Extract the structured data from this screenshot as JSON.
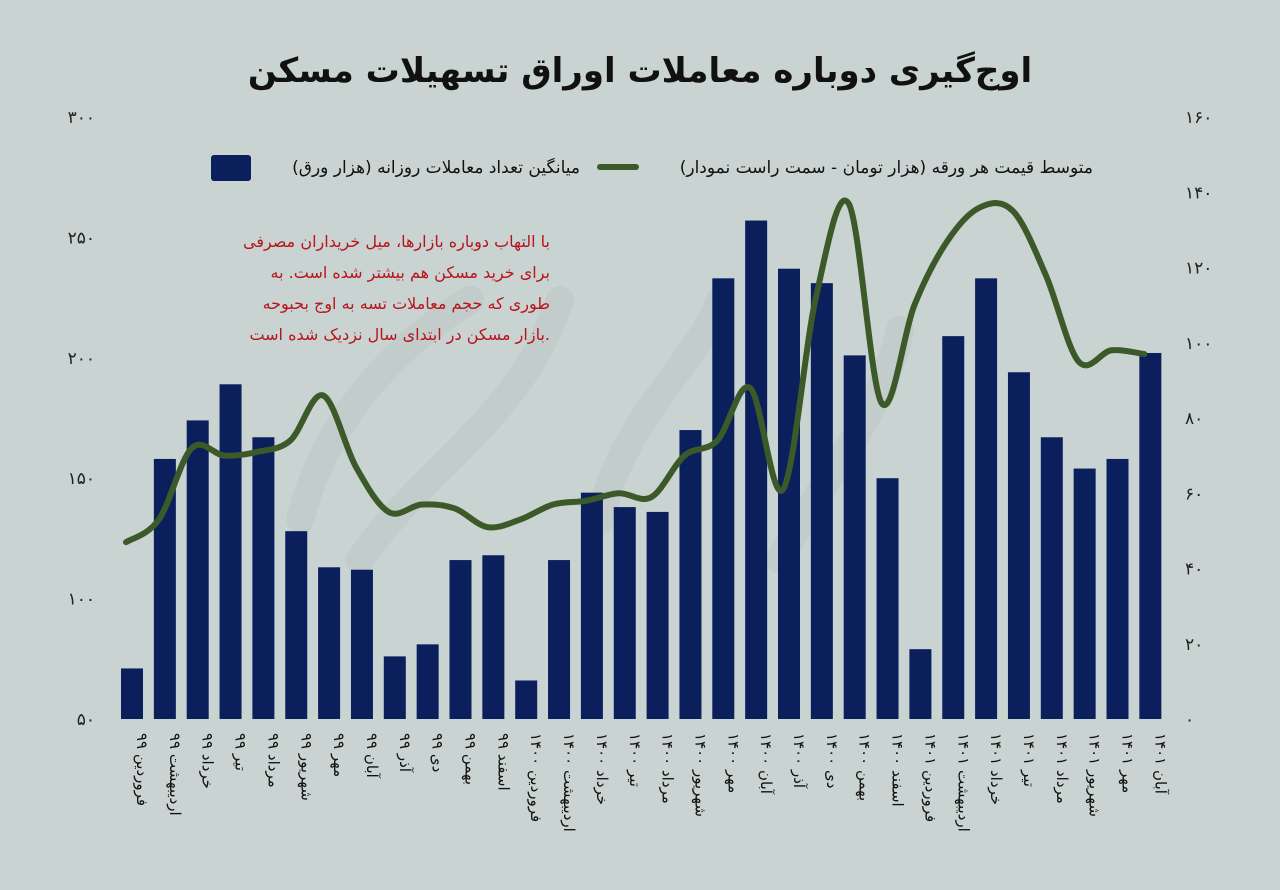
{
  "chart_data": {
    "type": "bar",
    "title": "اوج‌گیری دوباره معاملات اوراق تسهیلات مسکن",
    "categories": [
      "فروردین ۹۹",
      "اردیبهشت ۹۹",
      "خرداد ۹۹",
      "تیر ۹۹",
      "مرداد ۹۹",
      "شهریور ۹۹",
      "مهر ۹۹",
      "آبان ۹۹",
      "آذر ۹۹",
      "دی ۹۹",
      "بهمن ۹۹",
      "اسفند ۹۹",
      "فروردین ۱۴۰۰",
      "اردیبهشت ۱۴۰۰",
      "خرداد ۱۴۰۰",
      "تیر ۱۴۰۰",
      "مرداد ۱۴۰۰",
      "شهریور ۱۴۰۰",
      "مهر ۱۴۰۰",
      "آبان ۱۴۰۰",
      "آذر ۱۴۰۰",
      "دی ۱۴۰۰",
      "بهمن ۱۴۰۰",
      "اسفند ۱۴۰۰",
      "فروردین ۱۴۰۱",
      "اردیبهشت ۱۴۰۱",
      "خرداد ۱۴۰۱",
      "تیر ۱۴۰۱",
      "مرداد ۱۴۰۱",
      "شهریور ۱۴۰۱",
      "مهر ۱۴۰۱",
      "آبان ۱۴۰۱"
    ],
    "series": [
      {
        "name": "میانگین تعداد معاملات روزانه (هزار ورق)",
        "kind": "bar",
        "axis": "left",
        "color": "#0b1f5c",
        "values": [
          71,
          158,
          174,
          189,
          167,
          128,
          113,
          112,
          76,
          81,
          116,
          118,
          66,
          116,
          144,
          138,
          136,
          170,
          233,
          257,
          237,
          231,
          201,
          150,
          79,
          209,
          233,
          194,
          167,
          154,
          158,
          202
        ]
      },
      {
        "name": "متوسط قیمت هر ورقه (هزار تومان - سمت راست نمودار)",
        "kind": "line",
        "axis": "right",
        "color": "#3c5a29",
        "values": [
          47,
          53,
          72,
          70,
          71,
          74,
          86,
          67,
          55,
          57,
          56,
          51,
          53,
          57,
          58,
          60,
          59,
          70,
          74,
          88,
          61,
          112,
          137,
          84,
          110,
          127,
          136,
          135,
          118,
          95,
          98,
          97
        ]
      }
    ],
    "y_left": {
      "min": 50,
      "max": 300,
      "ticks": [
        "۵۰",
        "۱۰۰",
        "۱۵۰",
        "۲۰۰",
        "۲۵۰",
        "۳۰۰"
      ]
    },
    "y_right": {
      "min": 0,
      "max": 160,
      "ticks": [
        "۰",
        "۲۰",
        "۴۰",
        "۶۰",
        "۸۰",
        "۱۰۰",
        "۱۲۰",
        "۱۴۰",
        "۱۶۰"
      ]
    },
    "legend_placement": "top",
    "grid": false,
    "annotation": [
      "با التهاب دوباره بازارها، میل خریداران مصرفی",
      "برای خرید مسکن هم بیشتر شده است. به",
      "طوری که حجم معاملات تسه به اوج بحبوحه",
      "بازار مسکن در ابتدای سال نزدیک شده است."
    ],
    "annotation_color": "#b8141c"
  }
}
